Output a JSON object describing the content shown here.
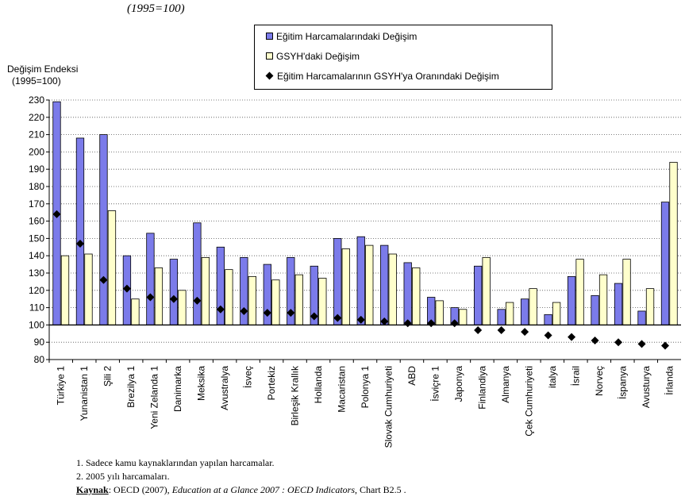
{
  "subtitle": "(1995=100)",
  "legend": {
    "items": [
      {
        "label": "Eğitim Harcamalarındaki Değişim",
        "color": "#7b7bea"
      },
      {
        "label": "GSYH'daki Değişim",
        "color": "#ffffcc"
      },
      {
        "label": "Eğitim Harcamalarının GSYH'ya Oranındaki Değişim",
        "color": "#000000"
      }
    ]
  },
  "y_axis_title": {
    "line1": "Değişim Endeksi",
    "line2": "(1995=100)"
  },
  "chart_data": {
    "type": "bar",
    "categories": [
      "Türkiye 1",
      "Yunanistan 1",
      "Şili 2",
      "Brezilya 1",
      "Yeni Zelanda 1",
      "Danimarka",
      "Meksika",
      "Avustralya",
      "İsveç",
      "Portekiz",
      "Birleşik Krallık",
      "Hollanda",
      "Macaristan",
      "Polonya 1",
      "Slovak Cumhuriyeti",
      "ABD",
      "İsviçre 1",
      "Japonya",
      "Finlandiya",
      "Almanya",
      "Çek Cumhuriyeti",
      "italya",
      "İsrail",
      "Norveç",
      "İspanya",
      "Avusturya",
      "İrlanda"
    ],
    "series": [
      {
        "name": "Eğitim Harcamalarındaki Değişim",
        "type": "bar",
        "color": "#7b7bea",
        "values": [
          229,
          208,
          210,
          140,
          153,
          138,
          159,
          145,
          139,
          135,
          139,
          134,
          150,
          151,
          146,
          136,
          116,
          110,
          134,
          109,
          115,
          106,
          128,
          117,
          124,
          108,
          171
        ]
      },
      {
        "name": "GSYH'daki Değişim",
        "type": "bar",
        "color": "#ffffcc",
        "values": [
          140,
          141,
          166,
          115,
          133,
          120,
          139,
          132,
          128,
          126,
          129,
          127,
          144,
          146,
          141,
          133,
          114,
          109,
          139,
          113,
          121,
          113,
          138,
          129,
          138,
          121,
          194
        ]
      },
      {
        "name": "Eğitim Harcamalarının GSYH'ya Oranındaki Değişim",
        "type": "marker",
        "color": "#000000",
        "values": [
          164,
          147,
          126,
          121,
          116,
          115,
          114,
          109,
          108,
          107,
          107,
          105,
          104,
          103,
          102,
          101,
          101,
          101,
          97,
          97,
          96,
          94,
          93,
          91,
          90,
          89,
          88
        ]
      }
    ],
    "ylim": [
      80,
      230
    ],
    "yticks": [
      80,
      90,
      100,
      110,
      120,
      130,
      140,
      150,
      160,
      170,
      180,
      190,
      200,
      210,
      220,
      230
    ],
    "baseline": 100,
    "grid": true,
    "legend_position": "top"
  },
  "notes": {
    "note1": "1. Sadece kamu kaynaklarından yapılan harcamalar.",
    "note2": "2. 2005 yılı harcamaları.",
    "source_label": "Kaynak",
    "source_prefix": ": OECD (2007), ",
    "source_italic": "Education at a Glance 2007 : OECD Indicators",
    "source_suffix": ", Chart B2.5 ."
  }
}
